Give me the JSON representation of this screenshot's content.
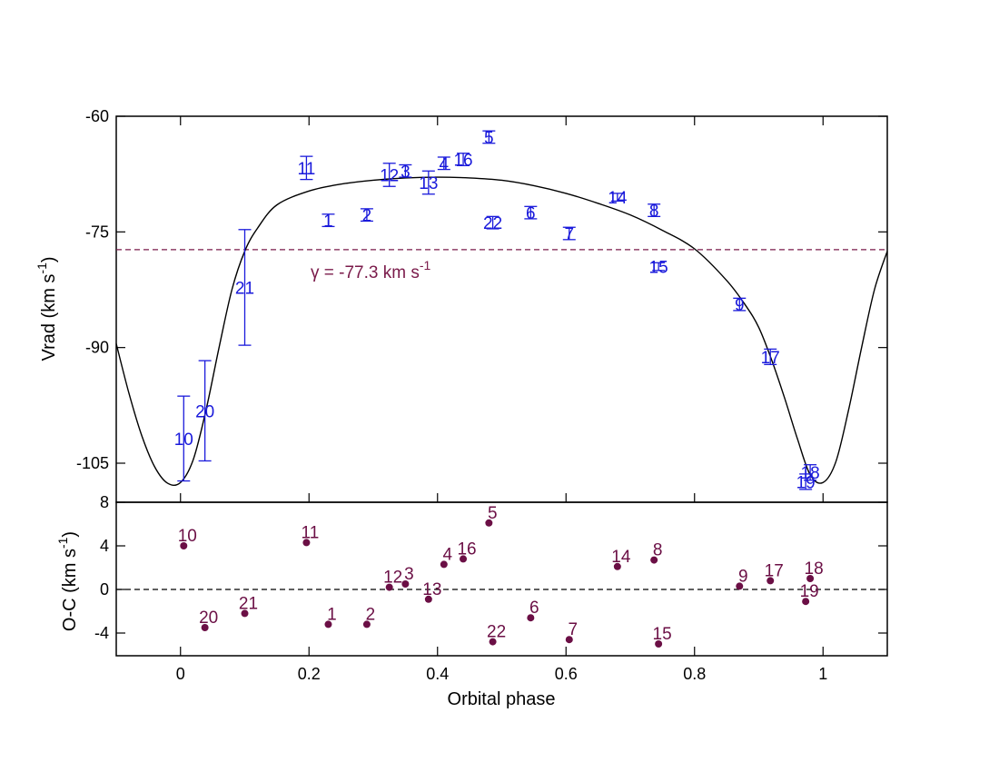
{
  "chart_data": [
    {
      "type": "scatter",
      "panel": "radial-velocity",
      "xlabel": "Orbital phase",
      "ylabel": "Vrad (km s",
      "ylabel_sup": "-1",
      "ylabel_close": ")",
      "xlim": [
        -0.1,
        1.1
      ],
      "ylim": [
        -110,
        -60
      ],
      "xticks": [
        0,
        0.2,
        0.4,
        0.6,
        0.8,
        1
      ],
      "xtick_labels": [
        "0",
        "0.2",
        "0.4",
        "0.6",
        "0.8",
        "1"
      ],
      "yticks": [
        -105,
        -90,
        -75,
        -60
      ],
      "ytick_labels": [
        "-105",
        "-90",
        "-75",
        "-60"
      ],
      "gamma": {
        "value": -77.3,
        "label_prefix": "γ = -77.3 km s",
        "label_sup": "-1"
      },
      "model_curve": {
        "x": [
          -0.1,
          -0.08,
          -0.06,
          -0.04,
          -0.02,
          0.0,
          0.02,
          0.04,
          0.06,
          0.08,
          0.1,
          0.12,
          0.15,
          0.2,
          0.25,
          0.3,
          0.35,
          0.4,
          0.45,
          0.5,
          0.55,
          0.6,
          0.65,
          0.7,
          0.75,
          0.8,
          0.85,
          0.88,
          0.9,
          0.92,
          0.94,
          0.96,
          0.98,
          1.0,
          1.02,
          1.04,
          1.06,
          1.08,
          1.1
        ],
        "y": [
          -89.5,
          -96.0,
          -101.5,
          -105.5,
          -107.6,
          -107.5,
          -104.5,
          -98.0,
          -90.0,
          -82.5,
          -77.5,
          -74.5,
          -71.5,
          -69.7,
          -68.8,
          -68.3,
          -68.0,
          -67.9,
          -68.0,
          -68.3,
          -69.0,
          -70.0,
          -71.3,
          -72.8,
          -74.8,
          -77.2,
          -81.3,
          -84.6,
          -87.4,
          -91.6,
          -96.5,
          -101.8,
          -106.5,
          -107.5,
          -104.8,
          -98.0,
          -90.0,
          -82.5,
          -77.5
        ]
      },
      "series": [
        {
          "points": [
            {
              "label": "1",
              "x": 0.23,
              "y": -73.5,
              "err": 0.8
            },
            {
              "label": "2",
              "x": 0.29,
              "y": -72.8,
              "err": 0.8
            },
            {
              "label": "3",
              "x": 0.35,
              "y": -67.1,
              "err": 0.8
            },
            {
              "label": "4",
              "x": 0.41,
              "y": -66.1,
              "err": 0.8
            },
            {
              "label": "5",
              "x": 0.48,
              "y": -62.7,
              "err": 0.8
            },
            {
              "label": "6",
              "x": 0.545,
              "y": -72.5,
              "err": 0.8
            },
            {
              "label": "7",
              "x": 0.605,
              "y": -75.2,
              "err": 0.8
            },
            {
              "label": "8",
              "x": 0.737,
              "y": -72.2,
              "err": 0.8
            },
            {
              "label": "9",
              "x": 0.87,
              "y": -84.4,
              "err": 0.8
            },
            {
              "label": "10",
              "x": 0.005,
              "y": -101.8,
              "err": 5.5
            },
            {
              "label": "11",
              "x": 0.196,
              "y": -66.7,
              "err": 1.5
            },
            {
              "label": "12",
              "x": 0.325,
              "y": -67.6,
              "err": 1.5
            },
            {
              "label": "13",
              "x": 0.386,
              "y": -68.6,
              "err": 1.5
            },
            {
              "label": "14",
              "x": 0.68,
              "y": -70.5,
              "err": 0.5
            },
            {
              "label": "15",
              "x": 0.744,
              "y": -79.5,
              "err": 0.5
            },
            {
              "label": "16",
              "x": 0.44,
              "y": -65.6,
              "err": 0.8
            },
            {
              "label": "17",
              "x": 0.918,
              "y": -91.2,
              "err": 1.0
            },
            {
              "label": "18",
              "x": 0.98,
              "y": -106.2,
              "err": 1.0
            },
            {
              "label": "19",
              "x": 0.973,
              "y": -107.4,
              "err": 1.0
            },
            {
              "label": "20",
              "x": 0.038,
              "y": -98.2,
              "err": 6.5
            },
            {
              "label": "21",
              "x": 0.1,
              "y": -82.2,
              "err": 7.5
            },
            {
              "label": "22",
              "x": 0.486,
              "y": -73.8,
              "err": 0.8
            }
          ]
        }
      ]
    },
    {
      "type": "scatter",
      "panel": "residuals",
      "xlabel": "Orbital phase",
      "ylabel": "O-C (km s",
      "ylabel_sup": "-1",
      "ylabel_close": ")",
      "xlim": [
        -0.1,
        1.1
      ],
      "ylim": [
        -6,
        8
      ],
      "yticks": [
        -4,
        0,
        4,
        8
      ],
      "ytick_labels": [
        "-4",
        "0",
        "4",
        "8"
      ],
      "zero_line": 0,
      "series": [
        {
          "points": [
            {
              "label": "1",
              "x": 0.23,
              "y": -3.2
            },
            {
              "label": "2",
              "x": 0.29,
              "y": -3.2
            },
            {
              "label": "3",
              "x": 0.35,
              "y": 0.5
            },
            {
              "label": "4",
              "x": 0.41,
              "y": 2.3
            },
            {
              "label": "5",
              "x": 0.48,
              "y": 6.1
            },
            {
              "label": "6",
              "x": 0.545,
              "y": -2.6
            },
            {
              "label": "7",
              "x": 0.605,
              "y": -4.6
            },
            {
              "label": "8",
              "x": 0.737,
              "y": 2.7
            },
            {
              "label": "9",
              "x": 0.87,
              "y": 0.3
            },
            {
              "label": "10",
              "x": 0.005,
              "y": 4.0
            },
            {
              "label": "11",
              "x": 0.196,
              "y": 4.3
            },
            {
              "label": "12",
              "x": 0.325,
              "y": 0.2
            },
            {
              "label": "13",
              "x": 0.386,
              "y": -0.9
            },
            {
              "label": "14",
              "x": 0.68,
              "y": 2.1
            },
            {
              "label": "15",
              "x": 0.744,
              "y": -5.0
            },
            {
              "label": "16",
              "x": 0.44,
              "y": 2.8
            },
            {
              "label": "17",
              "x": 0.918,
              "y": 0.8
            },
            {
              "label": "18",
              "x": 0.98,
              "y": 1.0
            },
            {
              "label": "19",
              "x": 0.973,
              "y": -1.1
            },
            {
              "label": "20",
              "x": 0.038,
              "y": -3.5
            },
            {
              "label": "21",
              "x": 0.1,
              "y": -2.2
            },
            {
              "label": "22",
              "x": 0.486,
              "y": -4.8
            }
          ]
        }
      ]
    }
  ],
  "colors": {
    "top_points": "#1a1adb",
    "bottom_points": "#6b0f45",
    "gamma_line": "#7a1a4a",
    "model": "#000000"
  }
}
